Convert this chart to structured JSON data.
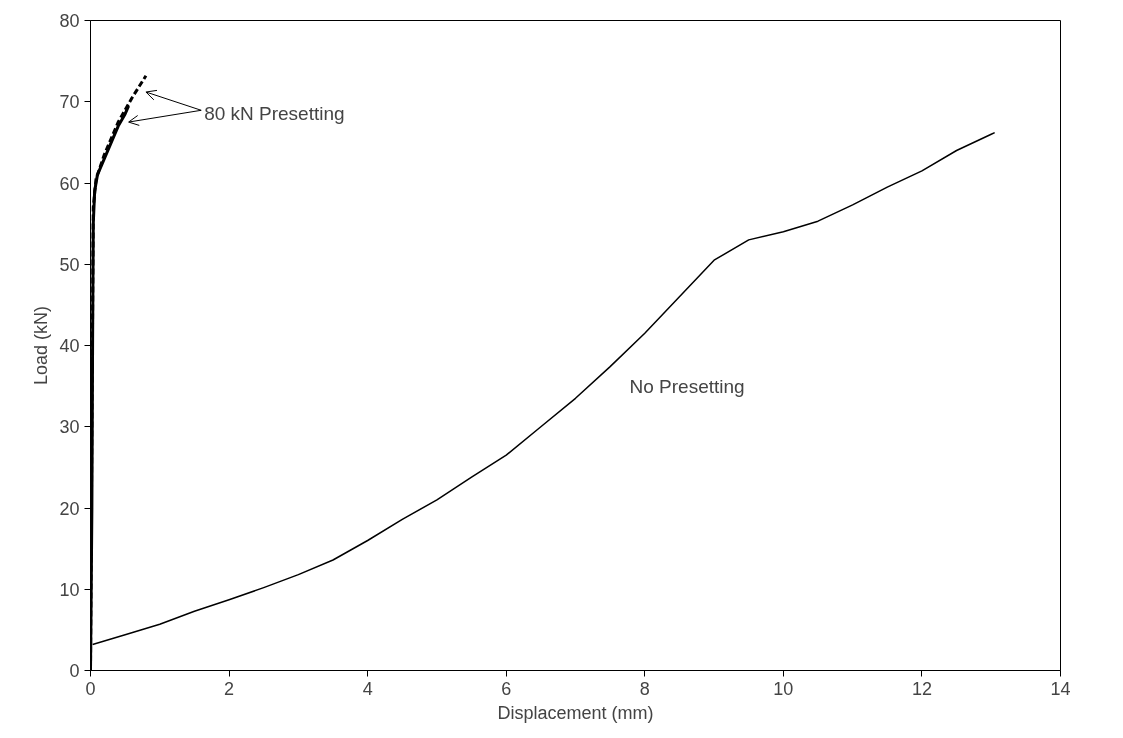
{
  "chart_data": {
    "type": "line",
    "xlabel": "Displacement (mm)",
    "ylabel": "Load (kN)",
    "xlim": [
      0,
      14
    ],
    "xticks": [
      0,
      2,
      4,
      6,
      8,
      10,
      12,
      14
    ],
    "ylim": [
      0,
      80
    ],
    "yticks": [
      0,
      10,
      20,
      30,
      40,
      50,
      60,
      70,
      80
    ],
    "grid": false,
    "marker": "none",
    "series": [
      {
        "color": "#000000",
        "line_style": "solid",
        "x": [
          0.03,
          0.5,
          1,
          1.5,
          2,
          2.5,
          3,
          3.5,
          4,
          4.5,
          5,
          5.5,
          6,
          6.5,
          7,
          7.5,
          8,
          8.5,
          9,
          9.5,
          10,
          10.5,
          11,
          11.5,
          12,
          12.5,
          13,
          13.05
        ],
        "values": [
          3.2,
          4.4,
          5.7,
          7.3,
          8.7,
          10.2,
          11.8,
          13.6,
          16,
          18.6,
          21,
          23.8,
          26.5,
          30,
          33.5,
          37.4,
          41.5,
          46,
          50.5,
          53,
          54,
          55.3,
          57.3,
          59.5,
          61.5,
          64,
          66,
          66.2
        ]
      },
      {
        "color": "#000000",
        "line_style": "solid",
        "x": [
          0,
          0.02,
          0.03,
          0.04,
          0.06,
          0.1,
          0.2,
          0.3,
          0.4,
          0.5,
          0.55
        ],
        "values": [
          0,
          20,
          40,
          55,
          59,
          61,
          63,
          65,
          67,
          68.5,
          69.5
        ]
      },
      {
        "color": "#000000",
        "line_style": "dashed",
        "x": [
          0,
          0.02,
          0.04,
          0.08,
          0.2,
          0.4,
          0.6,
          0.8
        ],
        "values": [
          0,
          30,
          57,
          60.5,
          63.5,
          67.5,
          70.5,
          73.2
        ]
      }
    ],
    "annotations": [
      "80 kN Presetting",
      "No Presetting"
    ]
  }
}
